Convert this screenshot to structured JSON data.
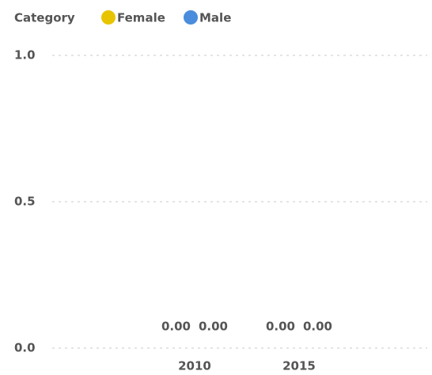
{
  "chart_data": {
    "type": "bar",
    "legend_title": "Category",
    "categories": [
      "2010",
      "2015"
    ],
    "series": [
      {
        "name": "Female",
        "color": "#e8c400",
        "values": [
          0,
          0
        ],
        "value_labels": [
          "0.00",
          "0.00"
        ]
      },
      {
        "name": "Male",
        "color": "#4a8ddc",
        "values": [
          0,
          0
        ],
        "value_labels": [
          "0.00",
          "0.00"
        ]
      }
    ],
    "ylim": [
      0,
      1
    ],
    "yticks": [
      {
        "value": 0,
        "label": "0.0"
      },
      0.5,
      {
        "value": 1,
        "label": "1.0"
      }
    ],
    "grid": true,
    "legend": "top-left"
  }
}
